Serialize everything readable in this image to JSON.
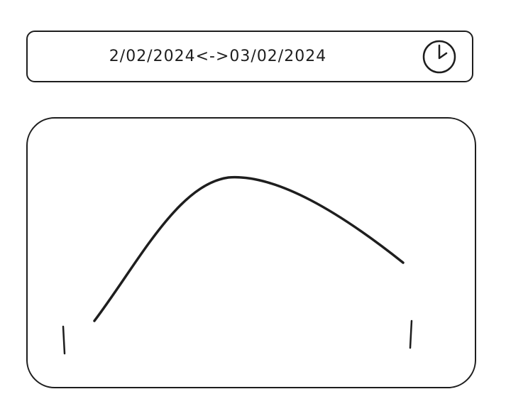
{
  "date_range": {
    "start": "2/02/2024",
    "separator": "<->",
    "end": "03/02/2024"
  },
  "clock_button": {
    "icon": "clock-icon"
  },
  "chart_data": {
    "type": "line",
    "shape": "single-peak curve",
    "title": "",
    "xlabel": "",
    "ylabel": "",
    "range_handles": 2
  },
  "colors": {
    "stroke": "#1e1e1e",
    "background": "#ffffff"
  }
}
